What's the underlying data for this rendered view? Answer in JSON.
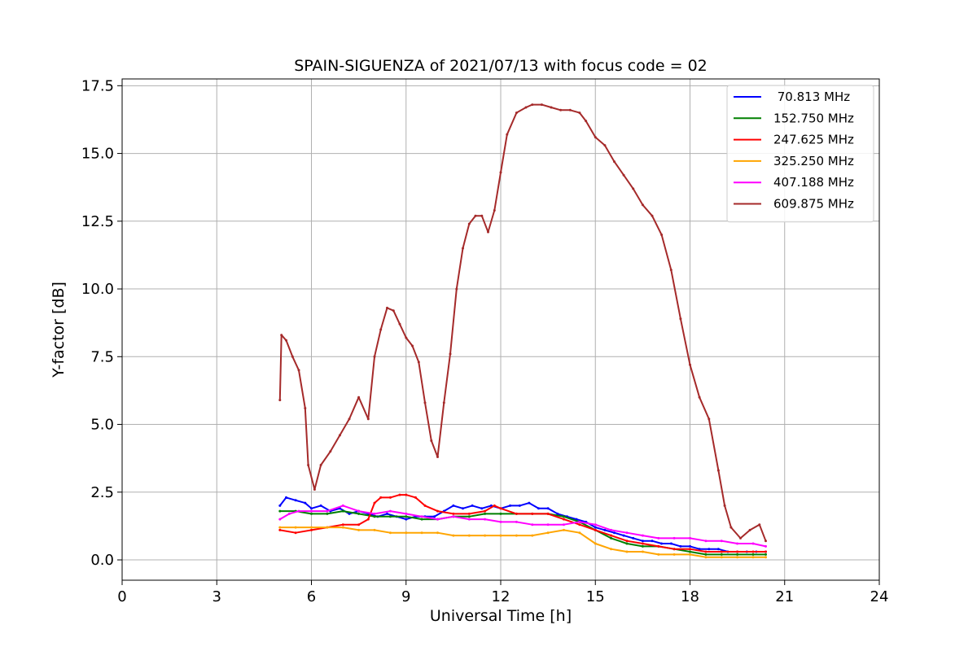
{
  "chart_data": {
    "type": "line",
    "title": "SPAIN-SIGUENZA of 2021/07/13 with focus code = 02",
    "xlabel": "Universal Time [h]",
    "ylabel": "Y-factor [dB]",
    "xlim": [
      0,
      24
    ],
    "ylim": [
      -0.75,
      17.75
    ],
    "xticks": [
      0,
      3,
      6,
      9,
      12,
      15,
      18,
      21,
      24
    ],
    "xtick_labels": [
      "0",
      "3",
      "6",
      "9",
      "12",
      "15",
      "18",
      "21",
      "24"
    ],
    "yticks": [
      0,
      2.5,
      5,
      7.5,
      10,
      12.5,
      15,
      17.5
    ],
    "ytick_labels": [
      "0.0",
      "2.5",
      "5.0",
      "7.5",
      "10.0",
      "12.5",
      "15.0",
      "17.5"
    ],
    "grid": true,
    "legend_position": "top-right",
    "series": [
      {
        "name": " 70.813 MHz",
        "color": "#0000ff",
        "x": [
          5.0,
          5.2,
          5.5,
          5.8,
          6.0,
          6.3,
          6.6,
          6.9,
          7.2,
          7.5,
          7.8,
          8.1,
          8.4,
          8.7,
          9.0,
          9.3,
          9.6,
          9.9,
          10.2,
          10.5,
          10.8,
          11.1,
          11.4,
          11.7,
          12.0,
          12.3,
          12.6,
          12.9,
          13.2,
          13.5,
          13.8,
          14.1,
          14.4,
          14.7,
          15.0,
          15.3,
          15.6,
          15.9,
          16.2,
          16.5,
          16.8,
          17.1,
          17.4,
          17.7,
          18.0,
          18.3,
          18.6,
          18.9,
          19.2,
          19.5,
          19.8,
          20.1,
          20.4
        ],
        "values": [
          2.0,
          2.3,
          2.2,
          2.1,
          1.9,
          2.0,
          1.8,
          1.9,
          1.7,
          1.8,
          1.7,
          1.6,
          1.7,
          1.6,
          1.5,
          1.6,
          1.6,
          1.6,
          1.8,
          2.0,
          1.9,
          2.0,
          1.9,
          2.0,
          1.9,
          2.0,
          2.0,
          2.1,
          1.9,
          1.9,
          1.7,
          1.6,
          1.5,
          1.4,
          1.2,
          1.1,
          1.0,
          0.9,
          0.8,
          0.7,
          0.7,
          0.6,
          0.6,
          0.5,
          0.5,
          0.4,
          0.4,
          0.4,
          0.3,
          0.3,
          0.3,
          0.3,
          0.3
        ]
      },
      {
        "name": "152.750 MHz",
        "color": "#008000",
        "x": [
          5.0,
          5.5,
          6.0,
          6.5,
          7.0,
          7.5,
          8.0,
          8.5,
          9.0,
          9.5,
          10.0,
          10.5,
          11.0,
          11.5,
          12.0,
          12.5,
          13.0,
          13.5,
          14.0,
          14.5,
          15.0,
          15.5,
          16.0,
          16.5,
          17.0,
          17.5,
          18.0,
          18.5,
          19.0,
          19.5,
          20.0,
          20.4
        ],
        "values": [
          1.8,
          1.8,
          1.7,
          1.7,
          1.8,
          1.7,
          1.6,
          1.6,
          1.6,
          1.5,
          1.5,
          1.6,
          1.6,
          1.7,
          1.7,
          1.7,
          1.7,
          1.7,
          1.6,
          1.4,
          1.1,
          0.8,
          0.6,
          0.5,
          0.5,
          0.4,
          0.3,
          0.2,
          0.2,
          0.2,
          0.2,
          0.2
        ]
      },
      {
        "name": "247.625 MHz",
        "color": "#ff0000",
        "x": [
          5.0,
          5.5,
          6.0,
          6.5,
          7.0,
          7.5,
          7.8,
          8.0,
          8.2,
          8.5,
          8.8,
          9.0,
          9.3,
          9.6,
          10.0,
          10.5,
          11.0,
          11.5,
          11.8,
          12.0,
          12.5,
          13.0,
          13.5,
          14.0,
          14.5,
          15.0,
          15.5,
          16.0,
          16.5,
          17.0,
          17.5,
          18.0,
          18.5,
          19.0,
          19.5,
          20.0,
          20.4
        ],
        "values": [
          1.1,
          1.0,
          1.1,
          1.2,
          1.3,
          1.3,
          1.5,
          2.1,
          2.3,
          2.3,
          2.4,
          2.4,
          2.3,
          2.0,
          1.8,
          1.7,
          1.7,
          1.8,
          2.0,
          1.9,
          1.7,
          1.7,
          1.7,
          1.5,
          1.3,
          1.1,
          0.9,
          0.7,
          0.6,
          0.5,
          0.4,
          0.4,
          0.3,
          0.3,
          0.3,
          0.3,
          0.3
        ]
      },
      {
        "name": "325.250 MHz",
        "color": "#ffa500",
        "x": [
          5.0,
          5.5,
          6.0,
          6.5,
          7.0,
          7.5,
          8.0,
          8.5,
          9.0,
          9.5,
          10.0,
          10.5,
          11.0,
          11.5,
          12.0,
          12.5,
          13.0,
          13.5,
          14.0,
          14.5,
          15.0,
          15.5,
          16.0,
          16.5,
          17.0,
          17.5,
          18.0,
          18.5,
          19.0,
          19.5,
          20.0,
          20.4
        ],
        "values": [
          1.2,
          1.2,
          1.2,
          1.2,
          1.2,
          1.1,
          1.1,
          1.0,
          1.0,
          1.0,
          1.0,
          0.9,
          0.9,
          0.9,
          0.9,
          0.9,
          0.9,
          1.0,
          1.1,
          1.0,
          0.6,
          0.4,
          0.3,
          0.3,
          0.2,
          0.2,
          0.2,
          0.1,
          0.1,
          0.1,
          0.1,
          0.1
        ]
      },
      {
        "name": "407.188 MHz",
        "color": "#ff00ff",
        "x": [
          5.0,
          5.3,
          5.6,
          6.0,
          6.5,
          7.0,
          7.5,
          8.0,
          8.5,
          9.0,
          9.5,
          10.0,
          10.5,
          11.0,
          11.5,
          12.0,
          12.5,
          13.0,
          13.5,
          14.0,
          14.5,
          15.0,
          15.5,
          16.0,
          16.5,
          17.0,
          17.5,
          18.0,
          18.5,
          19.0,
          19.5,
          20.0,
          20.4
        ],
        "values": [
          1.5,
          1.7,
          1.8,
          1.8,
          1.8,
          2.0,
          1.8,
          1.7,
          1.8,
          1.7,
          1.6,
          1.5,
          1.6,
          1.5,
          1.5,
          1.4,
          1.4,
          1.3,
          1.3,
          1.3,
          1.4,
          1.3,
          1.1,
          1.0,
          0.9,
          0.8,
          0.8,
          0.8,
          0.7,
          0.7,
          0.6,
          0.6,
          0.5
        ]
      },
      {
        "name": "609.875 MHz",
        "color": "#a52a2a",
        "x": [
          5.0,
          5.05,
          5.2,
          5.4,
          5.6,
          5.8,
          5.9,
          6.1,
          6.3,
          6.6,
          6.9,
          7.2,
          7.5,
          7.8,
          8.0,
          8.2,
          8.4,
          8.6,
          8.8,
          9.0,
          9.2,
          9.4,
          9.6,
          9.8,
          10.0,
          10.2,
          10.4,
          10.6,
          10.8,
          11.0,
          11.2,
          11.4,
          11.6,
          11.8,
          12.0,
          12.2,
          12.5,
          12.8,
          13.0,
          13.3,
          13.6,
          13.9,
          14.2,
          14.5,
          14.7,
          15.0,
          15.3,
          15.6,
          15.9,
          16.2,
          16.5,
          16.8,
          17.1,
          17.4,
          17.7,
          18.0,
          18.3,
          18.6,
          18.9,
          19.1,
          19.3,
          19.6,
          19.9,
          20.2,
          20.4
        ],
        "values": [
          5.9,
          8.3,
          8.1,
          7.5,
          7.0,
          5.6,
          3.5,
          2.6,
          3.5,
          4.0,
          4.6,
          5.2,
          6.0,
          5.2,
          7.5,
          8.5,
          9.3,
          9.2,
          8.7,
          8.2,
          7.9,
          7.3,
          5.8,
          4.4,
          3.8,
          5.8,
          7.6,
          10.0,
          11.5,
          12.4,
          12.7,
          12.7,
          12.1,
          12.9,
          14.3,
          15.7,
          16.5,
          16.7,
          16.8,
          16.8,
          16.7,
          16.6,
          16.6,
          16.5,
          16.2,
          15.6,
          15.3,
          14.7,
          14.2,
          13.7,
          13.1,
          12.7,
          12.0,
          10.7,
          8.9,
          7.2,
          6.0,
          5.2,
          3.3,
          2.0,
          1.2,
          0.8,
          1.1,
          1.3,
          0.7
        ]
      }
    ]
  }
}
